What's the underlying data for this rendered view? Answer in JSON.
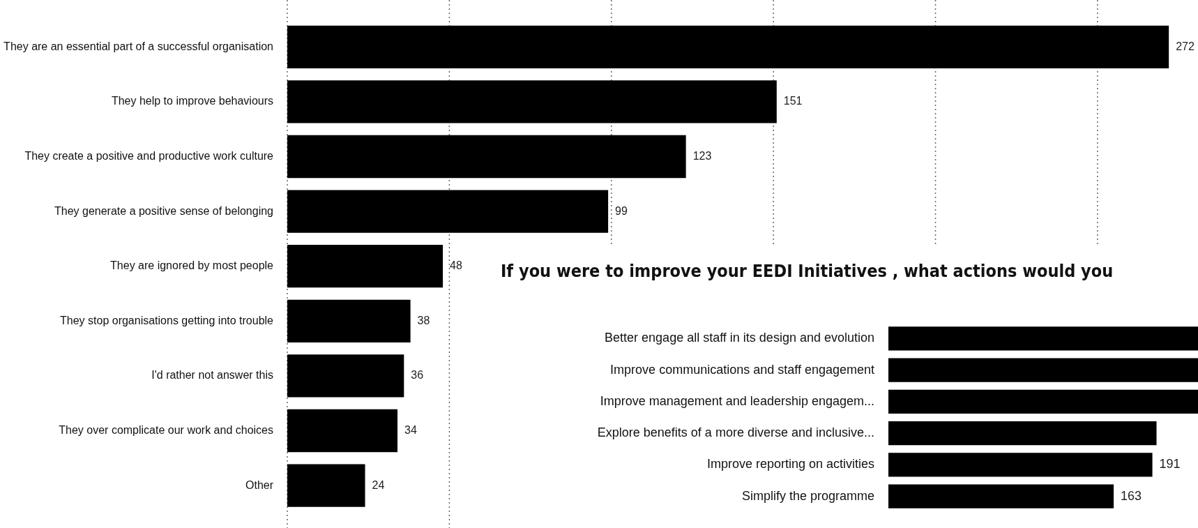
{
  "chart_data": [
    {
      "type": "bar",
      "orientation": "horizontal",
      "categories": [
        "They are an essential part of a successful organisation",
        "They help to improve behaviours",
        "They create a positive and productive work culture",
        "They generate a positive sense of belonging",
        "They are ignored by most people",
        "They stop organisations getting into trouble",
        "I'd rather not answer this",
        "They over complicate our work and choices",
        "Other"
      ],
      "values": [
        272,
        151,
        123,
        99,
        48,
        38,
        36,
        34,
        24
      ],
      "color": "#000000",
      "xlim": [
        0,
        281
      ],
      "xticks": [
        {
          "value": 0,
          "label": null
        },
        {
          "value": 50,
          "label": null
        },
        {
          "value": 100,
          "label": null
        },
        {
          "value": 150,
          "label": null
        },
        {
          "value": 200,
          "label": null
        },
        {
          "value": 250,
          "label": null
        }
      ],
      "grid": "x",
      "tick_labels": "y",
      "data_labels": true
    },
    {
      "type": "bar",
      "orientation": "horizontal",
      "title": "If you were to improve your EEDI Initiatives , what actions would you",
      "categories": [
        "Better engage all staff in its design and evolution",
        "Improve communications and staff engagement",
        "Improve management and leadership engagem...",
        "Explore benefits of a more diverse and inclusive...",
        "Improve reporting on activities",
        "Simplify the programme"
      ],
      "values": [
        224,
        224,
        224,
        194,
        191,
        163
      ],
      "value_labels": [
        null,
        null,
        null,
        null,
        "191",
        "163"
      ],
      "color": "#000000",
      "xlim": [
        0,
        224
      ],
      "tick_labels": "y"
    }
  ]
}
